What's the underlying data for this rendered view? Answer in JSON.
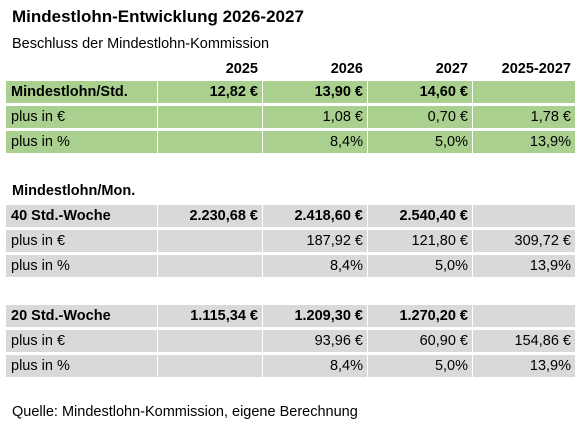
{
  "title": "Mindestlohn-Entwicklung 2026-2027",
  "subtitle": "Beschluss der Mindestlohn-Kommission",
  "columns": [
    "",
    "2025",
    "2026",
    "2027",
    "2025-2027"
  ],
  "hourly": {
    "main": [
      "Mindestlohn/Std.",
      "12,82 €",
      "13,90 €",
      "14,60 €",
      ""
    ],
    "plus_eur": [
      "plus in €",
      "",
      "1,08 €",
      "0,70 €",
      "1,78 €"
    ],
    "plus_pct": [
      "plus in %",
      "",
      "8,4%",
      "5,0%",
      "13,9%"
    ]
  },
  "monthly_label": "Mindestlohn/Mon.",
  "week40": {
    "main": [
      "40 Std.-Woche",
      "2.230,68 €",
      "2.418,60 €",
      "2.540,40 €",
      ""
    ],
    "plus_eur": [
      "plus in €",
      "",
      "187,92 €",
      "121,80 €",
      "309,72 €"
    ],
    "plus_pct": [
      "plus in %",
      "",
      "8,4%",
      "5,0%",
      "13,9%"
    ]
  },
  "week20": {
    "main": [
      "20 Std.-Woche",
      "1.115,34 €",
      "1.209,30 €",
      "1.270,20 €",
      ""
    ],
    "plus_eur": [
      "plus in €",
      "",
      "93,96 €",
      "60,90 €",
      "154,86 €"
    ],
    "plus_pct": [
      "plus in %",
      "",
      "8,4%",
      "5,0%",
      "13,9%"
    ]
  },
  "footer": "Quelle: Mindestlohn-Kommission, eigene Berechnung",
  "colors": {
    "green": "#a9d08e",
    "gray": "#d9d9d9"
  }
}
